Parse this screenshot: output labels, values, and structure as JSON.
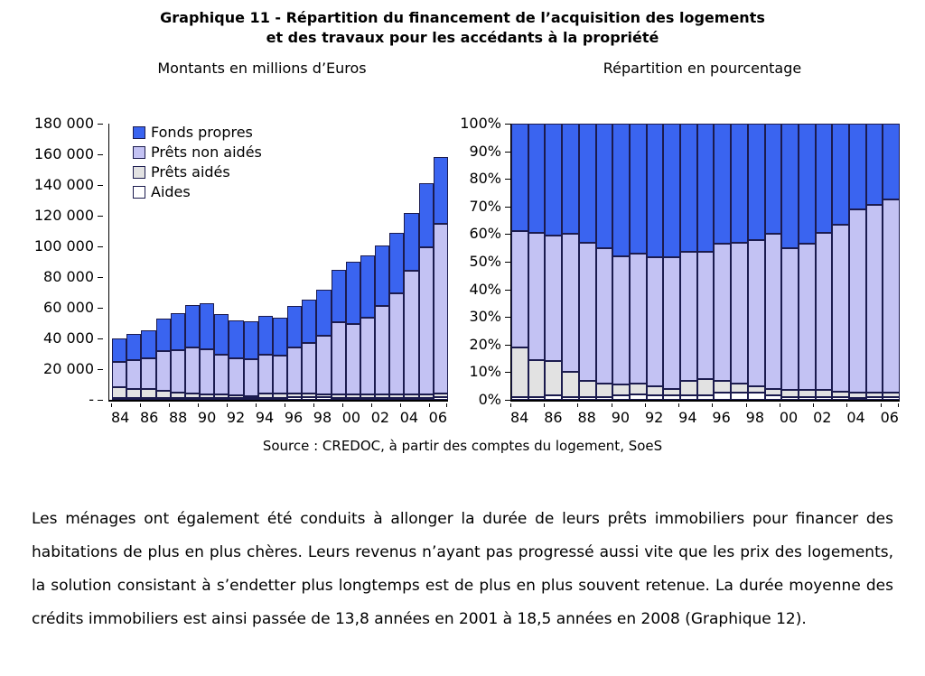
{
  "figure": {
    "title_line1": "Graphique 11 - Répartition du financement de l’acquisition des logements",
    "title_line2": "et des travaux pour les accédants à la propriété",
    "source": "Source : CREDOC, à partir des comptes du logement, SoeS"
  },
  "colors": {
    "fonds_propres": "#3a64f0",
    "prets_non_aides": "#c3c2f3",
    "prets_aides": "#e2e2e2",
    "aides": "#ffffff",
    "bar_border": "#1b1b4e",
    "axis": "#000000"
  },
  "legend": {
    "items": [
      {
        "label": "Fonds propres",
        "color": "#3a64f0"
      },
      {
        "label": "Prêts non aidés",
        "color": "#c3c2f3"
      },
      {
        "label": "Prêts aidés",
        "color": "#e2e2e2"
      },
      {
        "label": "Aides",
        "color": "#ffffff"
      }
    ]
  },
  "chart_data": [
    {
      "type": "bar",
      "stacked": true,
      "title": "Montants en millions d’Euros",
      "xlabel": "",
      "ylabel": "millions d’euros",
      "ylim": [
        0,
        180000
      ],
      "y_ticks": [
        "180 000",
        "160 000",
        "140 000",
        "120 000",
        "100 000",
        "80 000",
        "60 000",
        "40 000",
        "20 000",
        "-"
      ],
      "grid": false,
      "legend_position": "top-left-inside",
      "categories": [
        "84",
        "85",
        "86",
        "87",
        "88",
        "89",
        "90",
        "91",
        "92",
        "93",
        "94",
        "95",
        "96",
        "97",
        "98",
        "99",
        "00",
        "01",
        "02",
        "03",
        "04",
        "05",
        "06"
      ],
      "x_labels_shown": [
        "84",
        "86",
        "88",
        "90",
        "92",
        "94",
        "96",
        "98",
        "00",
        "02",
        "04",
        "06"
      ],
      "series": [
        {
          "name": "Aides",
          "color": "#ffffff",
          "values": [
            400,
            400,
            700,
            500,
            600,
            600,
            900,
            1100,
            800,
            800,
            800,
            800,
            1500,
            1600,
            1800,
            1300,
            900,
            900,
            1000,
            1100,
            600,
            1400,
            1600
          ]
        },
        {
          "name": "Prêts aidés",
          "color": "#e2e2e2",
          "values": [
            7100,
            5700,
            5600,
            4700,
            3400,
            3100,
            2500,
            2200,
            1800,
            1300,
            3000,
            3200,
            2700,
            2300,
            1800,
            2100,
            2200,
            2400,
            2500,
            2200,
            2400,
            2100,
            2400
          ]
        },
        {
          "name": "Prêts non aidés",
          "color": "#c3c2f3",
          "values": [
            16600,
            19300,
            20500,
            26000,
            28000,
            29900,
            29100,
            26300,
            23900,
            24200,
            25300,
            24400,
            30200,
            33400,
            38200,
            47300,
            46100,
            49800,
            57300,
            65900,
            80500,
            95900,
            110900
          ]
        },
        {
          "name": "Fonds propres",
          "color": "#3a64f0",
          "values": [
            15400,
            16600,
            18200,
            20800,
            24000,
            27400,
            30000,
            26400,
            25000,
            24700,
            25400,
            24600,
            26600,
            28200,
            30200,
            33800,
            40300,
            40900,
            39700,
            39800,
            37500,
            41600,
            43600
          ]
        }
      ],
      "totals": [
        39500,
        42000,
        45000,
        52000,
        56000,
        61000,
        62500,
        56000,
        51500,
        51000,
        54500,
        53000,
        61000,
        65500,
        72000,
        84500,
        89500,
        94000,
        100500,
        109000,
        121000,
        141000,
        158500
      ]
    },
    {
      "type": "bar",
      "stacked": true,
      "percent": true,
      "title": "Répartition en pourcentage",
      "xlabel": "",
      "ylabel": "%",
      "ylim": [
        0,
        100
      ],
      "y_ticks": [
        "100%",
        "90%",
        "80%",
        "70%",
        "60%",
        "50%",
        "40%",
        "30%",
        "20%",
        "10%",
        "0%"
      ],
      "grid": false,
      "categories": [
        "84",
        "85",
        "86",
        "87",
        "88",
        "89",
        "90",
        "91",
        "92",
        "93",
        "94",
        "95",
        "96",
        "97",
        "98",
        "99",
        "00",
        "01",
        "02",
        "03",
        "04",
        "05",
        "06"
      ],
      "x_labels_shown": [
        "84",
        "86",
        "88",
        "90",
        "92",
        "94",
        "96",
        "98",
        "00",
        "02",
        "04",
        "06"
      ],
      "series": [
        {
          "name": "Aides",
          "color": "#ffffff",
          "values": [
            1,
            1,
            1.5,
            1,
            1,
            1,
            1.5,
            2,
            1.5,
            1.5,
            1.5,
            1.5,
            2.5,
            2.5,
            2.5,
            1.5,
            1,
            1,
            1,
            1,
            0.5,
            1,
            1
          ]
        },
        {
          "name": "Prêts aidés",
          "color": "#e2e2e2",
          "values": [
            18,
            13.5,
            12.5,
            9,
            6,
            5,
            4,
            4,
            3.5,
            2.5,
            5.5,
            6,
            4.5,
            3.5,
            2.5,
            2.5,
            2.5,
            2.5,
            2.5,
            2,
            2,
            1.5,
            1.5
          ]
        },
        {
          "name": "Prêts non aidés",
          "color": "#c3c2f3",
          "values": [
            42,
            46,
            45.5,
            50,
            50,
            49,
            46.5,
            47,
            46.5,
            47.5,
            46.5,
            46,
            49.5,
            51,
            53,
            56,
            51.5,
            53,
            57,
            60.5,
            66.5,
            68,
            70
          ]
        },
        {
          "name": "Fonds propres",
          "color": "#3a64f0",
          "values": [
            39,
            39.5,
            40.5,
            40,
            43,
            45,
            48,
            47,
            48.5,
            48.5,
            46.5,
            46.5,
            43.5,
            43,
            42,
            40,
            45,
            43.5,
            39.5,
            36.5,
            31,
            29.5,
            27.5
          ]
        }
      ]
    }
  ],
  "paragraph": {
    "text": "Les ménages ont également été conduits à allonger la durée de leurs prêts immobiliers pour financer des habitations de plus en plus chères. Leurs revenus n’ayant pas progressé aussi vite que les prix des logements, la solution consistant à s’endetter plus longtemps est de plus en plus souvent retenue. La durée moyenne des crédits immobiliers est ainsi passée de 13,8 années en 2001 à 18,5 années en 2008 (Graphique 12)."
  }
}
